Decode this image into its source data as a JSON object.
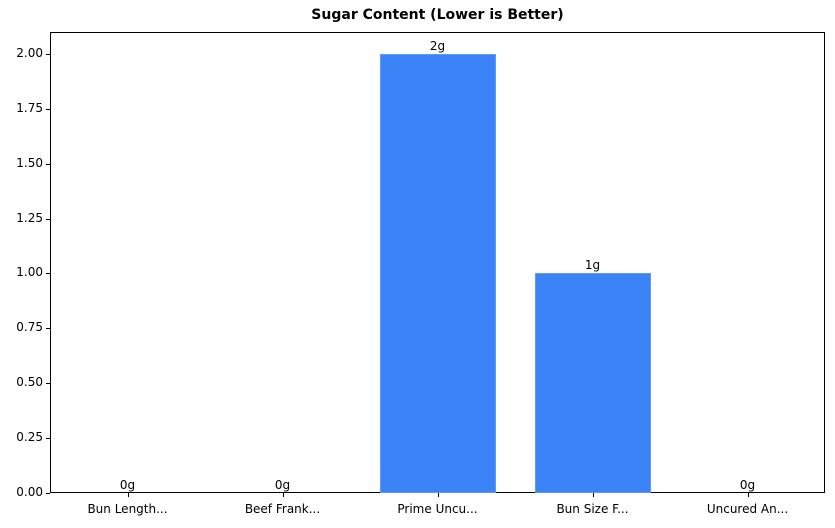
{
  "chart_data": {
    "type": "bar",
    "title": "Sugar Content (Lower is Better)",
    "xlabel": "",
    "ylabel": "",
    "categories": [
      "Bun Length...",
      "Beef Frank...",
      "Prime Uncu...",
      "Bun Size F...",
      "Uncured An..."
    ],
    "values": [
      0,
      0,
      2,
      1,
      0
    ],
    "value_labels": [
      "0g",
      "0g",
      "2g",
      "1g",
      "0g"
    ],
    "ylim": [
      0,
      2.1
    ],
    "yticks": [
      "0.00",
      "0.25",
      "0.50",
      "0.75",
      "1.00",
      "1.25",
      "1.50",
      "1.75",
      "2.00"
    ],
    "grid": false,
    "bar_color": "#3b82f6"
  }
}
